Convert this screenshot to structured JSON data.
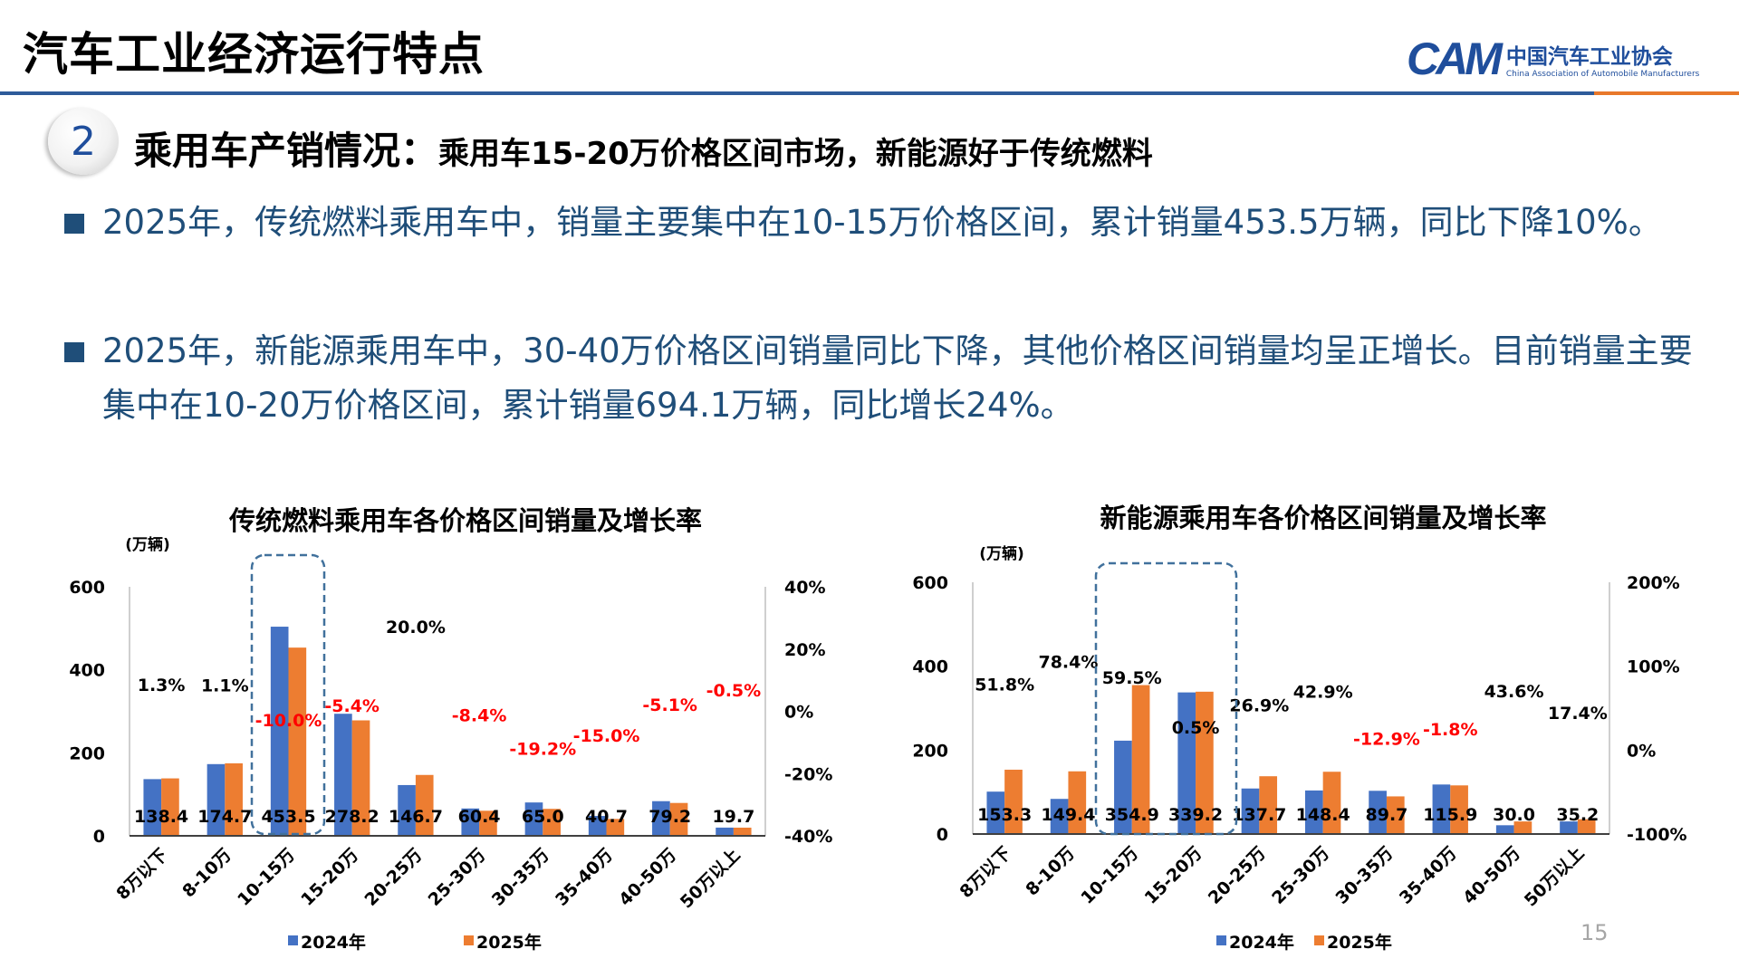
{
  "header": {
    "title": "汽车工业经济运行特点",
    "logo": {
      "mark": "CAM",
      "cn": "中国汽车工业协会",
      "en": "China Association of Automobile Manufacturers"
    }
  },
  "section": {
    "number": "2",
    "heading_main": "乘用车产销情况：",
    "heading_sub": "乘用车15-20万价格区间市场，新能源好于传统燃料"
  },
  "bullets": [
    " 2025年，传统燃料乘用车中，销量主要集中在10-15万价格区间，累计销量453.5万辆，同比下降10%。",
    "2025年，新能源乘用车中，30-40万价格区间销量同比下降，其他价格区间销量均呈正增长。目前销量主要集中在10-20万价格区间，累计销量694.1万辆，同比增长24%。"
  ],
  "page_number": "15",
  "colors": {
    "s2024": "#4472c4",
    "s2025": "#ed7d31",
    "negative": "#ff0000",
    "box": "#41719c"
  },
  "chart_data": [
    {
      "type": "bar",
      "title": "传统燃料乘用车各价格区间销量及增长率",
      "unit": "(万辆)",
      "categories": [
        "8万以下",
        "8-10万",
        "10-15万",
        "15-20万",
        "20-25万",
        "25-30万",
        "30-35万",
        "35-40万",
        "40-50万",
        "50万以上"
      ],
      "series": [
        {
          "name": "2024年",
          "values": [
            136.6,
            172.8,
            503.9,
            294.1,
            122.3,
            65.9,
            80.4,
            47.9,
            83.5,
            19.8
          ]
        },
        {
          "name": "2025年",
          "values": [
            138.4,
            174.7,
            453.5,
            278.2,
            146.7,
            60.4,
            65.0,
            40.7,
            79.2,
            19.7
          ]
        }
      ],
      "value_labels": [
        "138.4",
        "174.7",
        "453.5",
        "278.2",
        "146.7",
        "60.4",
        "65.0",
        "40.7",
        "79.2",
        "19.7"
      ],
      "growth": [
        1.3,
        1.1,
        -10.0,
        -5.4,
        20.0,
        -8.4,
        -19.2,
        -15.0,
        -5.1,
        -0.5
      ],
      "growth_labels": [
        "1.3%",
        "1.1%",
        "-10.0%",
        "-5.4%",
        "20.0%",
        "-8.4%",
        "-19.2%",
        "-15.0%",
        "-5.1%",
        "-0.5%"
      ],
      "ylim": [
        0,
        600
      ],
      "yticks": [
        "0",
        "200",
        "400",
        "600"
      ],
      "y2lim": [
        -40,
        40
      ],
      "y2ticks": [
        "-40%",
        "-20%",
        "0%",
        "20%",
        "40%"
      ],
      "highlight": [
        "10-15万"
      ],
      "legend": "bottom"
    },
    {
      "type": "bar",
      "title": "新能源乘用车各价格区间销量及增长率",
      "unit": "(万辆)",
      "categories": [
        "8万以下",
        "8-10万",
        "10-15万",
        "15-20万",
        "20-25万",
        "25-30万",
        "30-35万",
        "35-40万",
        "40-50万",
        "50万以上"
      ],
      "series": [
        {
          "name": "2024年",
          "values": [
            101.0,
            83.7,
            222.5,
            337.5,
            108.5,
            103.8,
            103.0,
            118.0,
            20.9,
            30.0
          ]
        },
        {
          "name": "2025年",
          "values": [
            153.3,
            149.4,
            354.9,
            339.2,
            137.7,
            148.4,
            89.7,
            115.9,
            30.0,
            35.2
          ]
        }
      ],
      "value_labels": [
        "153.3",
        "149.4",
        "354.9",
        "339.2",
        "137.7",
        "148.4",
        "89.7",
        "115.9",
        "30.0",
        "35.2"
      ],
      "growth": [
        51.8,
        78.4,
        59.5,
        0.5,
        26.9,
        42.9,
        -12.9,
        -1.8,
        43.6,
        17.4
      ],
      "growth_labels": [
        "51.8%",
        "78.4%",
        "59.5%",
        "0.5%",
        "26.9%",
        "42.9%",
        "-12.9%",
        "-1.8%",
        "43.6%",
        "17.4%"
      ],
      "ylim": [
        0,
        600
      ],
      "yticks": [
        "0",
        "200",
        "400",
        "600"
      ],
      "y2lim": [
        -100,
        200
      ],
      "y2ticks": [
        "-100%",
        "0%",
        "100%",
        "200%"
      ],
      "highlight": [
        "10-15万",
        "15-20万"
      ],
      "legend": "bottom"
    }
  ]
}
